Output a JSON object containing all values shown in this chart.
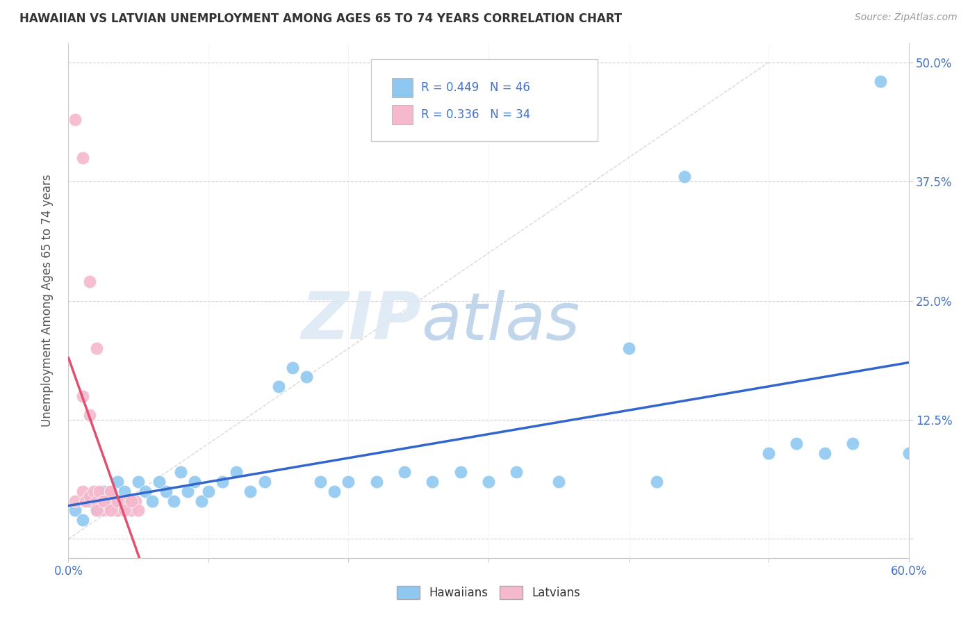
{
  "title": "HAWAIIAN VS LATVIAN UNEMPLOYMENT AMONG AGES 65 TO 74 YEARS CORRELATION CHART",
  "source": "Source: ZipAtlas.com",
  "ylabel": "Unemployment Among Ages 65 to 74 years",
  "xlim": [
    0.0,
    0.6
  ],
  "ylim": [
    -0.02,
    0.52
  ],
  "ydata_min": 0.0,
  "ydata_max": 0.5,
  "xtick_positions": [
    0.0,
    0.1,
    0.2,
    0.3,
    0.4,
    0.5,
    0.6
  ],
  "xticklabels": [
    "0.0%",
    "",
    "",
    "",
    "",
    "",
    "60.0%"
  ],
  "ytick_positions": [
    0.0,
    0.125,
    0.25,
    0.375,
    0.5
  ],
  "yticklabels_right": [
    "",
    "12.5%",
    "25.0%",
    "37.5%",
    "50.0%"
  ],
  "grid_color": "#d0d0d0",
  "grid_style": "--",
  "background_color": "#ffffff",
  "watermark_zip": "ZIP",
  "watermark_atlas": "atlas",
  "watermark_color_zip": "#dce8f5",
  "watermark_color_atlas": "#c5d8f0",
  "legend_R_hawaiian": "R = 0.449",
  "legend_N_hawaiian": "N = 46",
  "legend_R_latvian": "R = 0.336",
  "legend_N_latvian": "N = 34",
  "hawaiian_color": "#8EC8F0",
  "latvian_color": "#F5B8CC",
  "trend_hawaiian_color": "#3366CC",
  "trend_latvian_color": "#E05070",
  "ref_line_color": "#c8c8c8",
  "hawaiian_x": [
    0.005,
    0.01,
    0.015,
    0.02,
    0.025,
    0.03,
    0.035,
    0.04,
    0.045,
    0.05,
    0.055,
    0.06,
    0.065,
    0.07,
    0.075,
    0.08,
    0.085,
    0.09,
    0.095,
    0.1,
    0.11,
    0.12,
    0.13,
    0.14,
    0.15,
    0.16,
    0.17,
    0.18,
    0.19,
    0.2,
    0.22,
    0.24,
    0.26,
    0.28,
    0.3,
    0.32,
    0.35,
    0.4,
    0.42,
    0.44,
    0.5,
    0.52,
    0.54,
    0.56,
    0.58,
    0.6
  ],
  "hawaiian_y": [
    0.03,
    0.02,
    0.04,
    0.03,
    0.05,
    0.04,
    0.06,
    0.05,
    0.04,
    0.06,
    0.05,
    0.04,
    0.06,
    0.05,
    0.04,
    0.07,
    0.05,
    0.06,
    0.04,
    0.05,
    0.06,
    0.07,
    0.05,
    0.06,
    0.16,
    0.18,
    0.17,
    0.06,
    0.05,
    0.06,
    0.06,
    0.07,
    0.06,
    0.07,
    0.06,
    0.07,
    0.06,
    0.2,
    0.06,
    0.38,
    0.09,
    0.1,
    0.09,
    0.1,
    0.48,
    0.09
  ],
  "latvian_x": [
    0.005,
    0.01,
    0.012,
    0.015,
    0.018,
    0.02,
    0.022,
    0.025,
    0.028,
    0.03,
    0.032,
    0.035,
    0.038,
    0.04,
    0.042,
    0.045,
    0.048,
    0.05,
    0.01,
    0.015,
    0.02,
    0.025,
    0.03,
    0.035,
    0.04,
    0.005,
    0.01,
    0.015,
    0.02,
    0.025,
    0.03,
    0.035,
    0.04,
    0.045
  ],
  "latvian_y": [
    0.04,
    0.05,
    0.04,
    0.045,
    0.05,
    0.04,
    0.05,
    0.03,
    0.04,
    0.05,
    0.04,
    0.03,
    0.04,
    0.03,
    0.04,
    0.03,
    0.04,
    0.03,
    0.15,
    0.13,
    0.2,
    0.04,
    0.05,
    0.03,
    0.04,
    0.44,
    0.4,
    0.27,
    0.03,
    0.04,
    0.03,
    0.04,
    0.03,
    0.04
  ]
}
